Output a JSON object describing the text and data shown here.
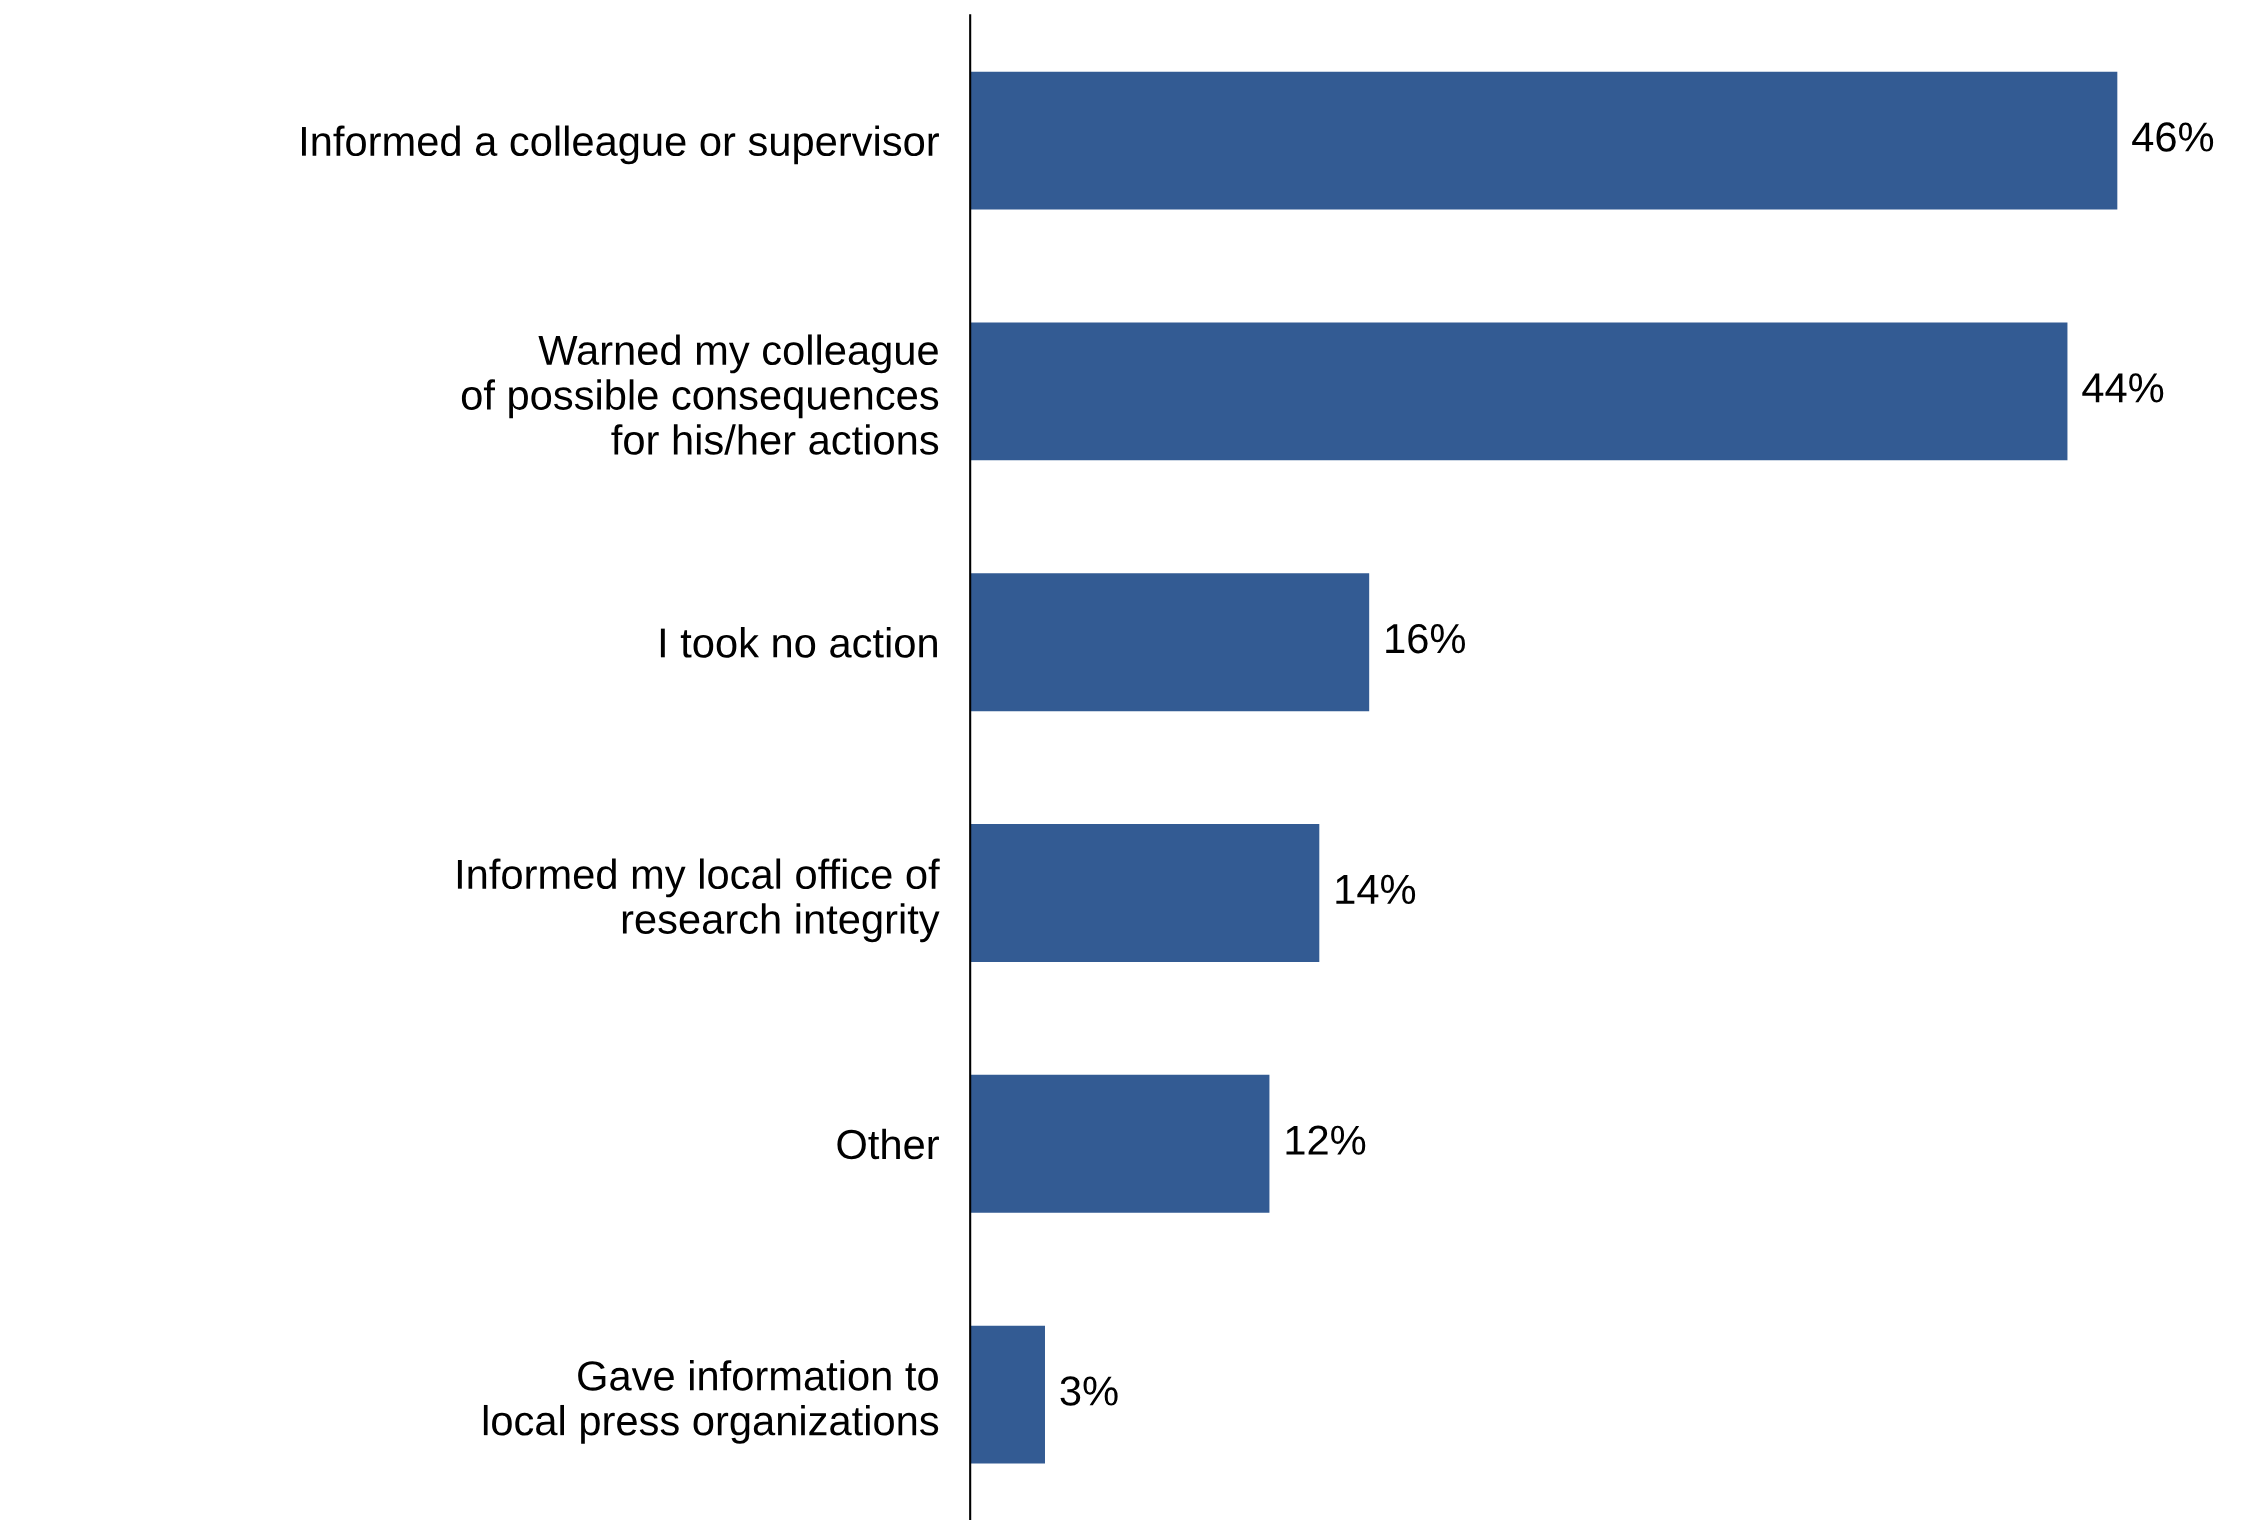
{
  "chart_data": {
    "type": "bar",
    "orientation": "horizontal",
    "categories": [
      "Informed a colleague or supervisor",
      "Warned my colleague\nof possible consequences\nfor his/her actions",
      "I took no action",
      "Informed my local office of\nresearch integrity",
      "Other",
      "Gave information to\nlocal press organizations"
    ],
    "values": [
      46,
      44,
      16,
      14,
      12,
      3
    ],
    "value_labels": [
      "46%",
      "44%",
      "16%",
      "14%",
      "12%",
      "3%"
    ],
    "color": "#335b93",
    "grid": false
  }
}
